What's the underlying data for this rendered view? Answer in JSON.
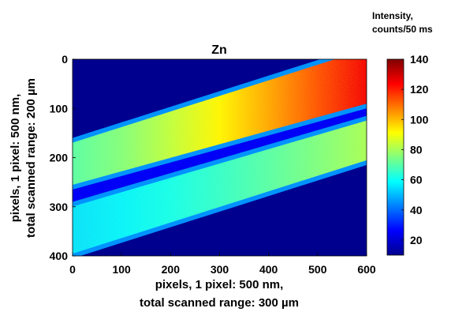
{
  "chart_data": {
    "type": "heatmap",
    "title": "Zn",
    "xlabel_line1": "pixels, 1 pixel: 500 nm,",
    "xlabel_line2": "total scanned range: 300 µm",
    "ylabel_line1": "pixels, 1 pixel: 500 nm,",
    "ylabel_line2": "total scanned range: 200 µm",
    "xlim": [
      0,
      600
    ],
    "ylim": [
      0,
      400
    ],
    "y_reversed": true,
    "x_ticks": [
      "0",
      "100",
      "200",
      "300",
      "400",
      "500",
      "600"
    ],
    "y_ticks": [
      "0",
      "100",
      "200",
      "300",
      "400"
    ],
    "colorbar": {
      "title_line1": "Intensity,",
      "title_line2": "counts/50 ms",
      "range": [
        10,
        140
      ],
      "ticks": [
        "20",
        "40",
        "60",
        "80",
        "100",
        "120",
        "140"
      ],
      "colormap": "jet"
    },
    "bands": [
      {
        "name": "upper",
        "top_edge": [
          [
            0,
            160
          ],
          [
            600,
            -30
          ]
        ],
        "bottom_edge": [
          [
            0,
            265
          ],
          [
            600,
            100
          ]
        ],
        "intensity_left": 70,
        "intensity_right": 125
      },
      {
        "name": "lower",
        "top_edge": [
          [
            0,
            290
          ],
          [
            600,
            115
          ]
        ],
        "bottom_edge": [
          [
            0,
            405
          ],
          [
            600,
            215
          ]
        ],
        "intensity_left": 55,
        "intensity_right": 80
      }
    ],
    "background_intensity": 10,
    "gap_intensity": 25
  }
}
